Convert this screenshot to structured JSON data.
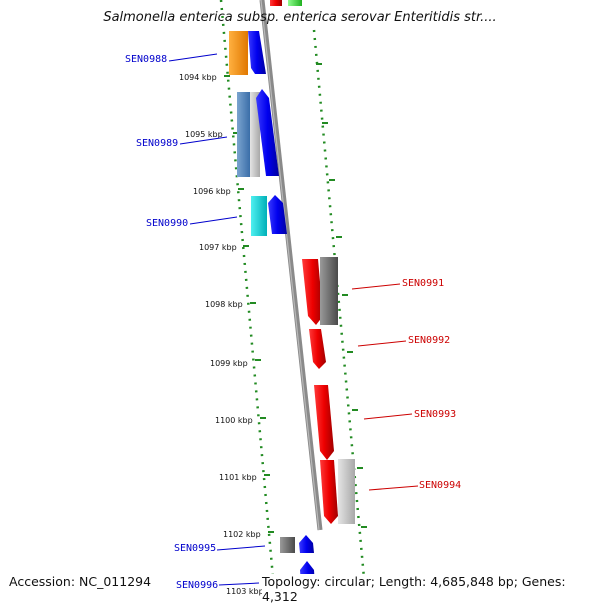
{
  "title": "Salmonella enterica subsp. enterica serovar Enteritidis str....",
  "footer": {
    "accession": "Accession: NC_011294",
    "summary": "Topology: circular; Length: 4,685,848 bp; Genes: 4,312"
  },
  "kbp_ticks": [
    "1094 kbp",
    "1095 kbp",
    "1096 kbp",
    "1097 kbp",
    "1098 kbp",
    "1099 kbp",
    "1100 kbp",
    "1101 kbp",
    "1102 kbp",
    "1103 kbp"
  ],
  "genes": [
    {
      "name": "SEN0988",
      "strand": "reverse",
      "color": "#1010cc"
    },
    {
      "name": "SEN0989",
      "strand": "reverse",
      "color": "#1010cc"
    },
    {
      "name": "SEN0990",
      "strand": "reverse",
      "color": "#1010cc"
    },
    {
      "name": "SEN0991",
      "strand": "forward",
      "color": "#cc0000"
    },
    {
      "name": "SEN0992",
      "strand": "forward",
      "color": "#cc0000"
    },
    {
      "name": "SEN0993",
      "strand": "forward",
      "color": "#cc0000"
    },
    {
      "name": "SEN0994",
      "strand": "forward",
      "color": "#cc0000"
    },
    {
      "name": "SEN0995",
      "strand": "reverse",
      "color": "#1010cc"
    },
    {
      "name": "SEN0996",
      "strand": "reverse",
      "color": "#1010cc"
    }
  ],
  "colors": {
    "backbone": "#8a8a8a",
    "ticks": "#228b22",
    "forward_genes": "#ee0000",
    "reverse_genes": "#0000ee"
  }
}
